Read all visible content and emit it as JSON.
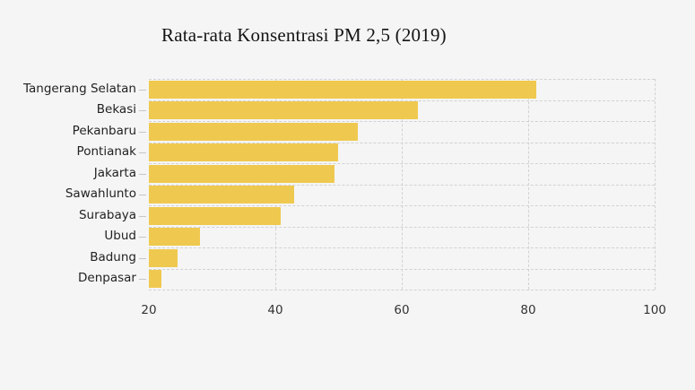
{
  "title": "Rata-rata Konsentrasi PM 2,5 (2019)",
  "background_color": "#f5f5f5",
  "chart_data": {
    "type": "bar",
    "orientation": "horizontal",
    "title": "Rata-rata Konsentrasi PM 2,5 (2019)",
    "categories": [
      "Tangerang Selatan",
      "Bekasi",
      "Pekanbaru",
      "Pontianak",
      "Jakarta",
      "Sawahlunto",
      "Surabaya",
      "Ubud",
      "Badung",
      "Denpasar"
    ],
    "values": [
      81.3,
      62.6,
      53.0,
      49.9,
      49.3,
      43.0,
      40.8,
      28.1,
      24.6,
      22.0
    ],
    "xlabel": "",
    "ylabel": "",
    "xlim": [
      20,
      100
    ],
    "xticks": [
      20,
      40,
      60,
      80,
      100
    ],
    "grid": "dashed",
    "legend": "none",
    "bar_color": "#efc94f",
    "grid_color": "#d2d2d2",
    "axis_text_color": "#333333",
    "label_text_color": "#222222"
  }
}
